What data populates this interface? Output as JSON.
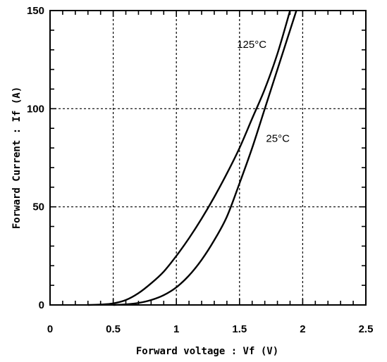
{
  "chart_data": {
    "type": "line",
    "title": "",
    "xlabel": "Forward voltage : Vf (V)",
    "ylabel": "Forward Current : If (A)",
    "xlim": [
      0,
      2.5
    ],
    "ylim": [
      0,
      150
    ],
    "x_ticks": [
      0,
      0.5,
      1,
      1.5,
      2,
      2.5
    ],
    "x_tick_labels": [
      "0",
      "0.5",
      "1",
      "1.5",
      "2",
      "2.5"
    ],
    "y_ticks": [
      0,
      50,
      100,
      150
    ],
    "y_tick_labels": [
      "0",
      "50",
      "100",
      "150"
    ],
    "grid": true,
    "grid_style": "dotted",
    "colors": {
      "line": "#000000",
      "grid": "#000000",
      "background": "#ffffff"
    },
    "series": [
      {
        "name": "125°C",
        "points": [
          [
            0.3,
            0
          ],
          [
            0.4,
            0.2
          ],
          [
            0.5,
            0.8
          ],
          [
            0.6,
            2.5
          ],
          [
            0.7,
            6
          ],
          [
            0.8,
            11
          ],
          [
            0.9,
            17
          ],
          [
            1.0,
            25
          ],
          [
            1.1,
            34
          ],
          [
            1.2,
            44
          ],
          [
            1.3,
            55
          ],
          [
            1.4,
            67
          ],
          [
            1.5,
            80
          ],
          [
            1.6,
            95
          ],
          [
            1.7,
            110
          ],
          [
            1.8,
            128
          ],
          [
            1.9,
            150
          ]
        ]
      },
      {
        "name": "25°C",
        "points": [
          [
            0.5,
            0
          ],
          [
            0.6,
            0.3
          ],
          [
            0.7,
            1
          ],
          [
            0.8,
            2.5
          ],
          [
            0.9,
            5
          ],
          [
            1.0,
            9
          ],
          [
            1.1,
            15
          ],
          [
            1.2,
            23
          ],
          [
            1.3,
            33
          ],
          [
            1.4,
            45
          ],
          [
            1.5,
            62
          ],
          [
            1.6,
            80
          ],
          [
            1.7,
            100
          ],
          [
            1.8,
            120
          ],
          [
            1.9,
            140
          ],
          [
            1.95,
            150
          ]
        ]
      }
    ],
    "annotations": [
      {
        "text": "125°C",
        "x": 1.48,
        "y": 131
      },
      {
        "text": "25°C",
        "x": 1.71,
        "y": 83
      }
    ]
  }
}
